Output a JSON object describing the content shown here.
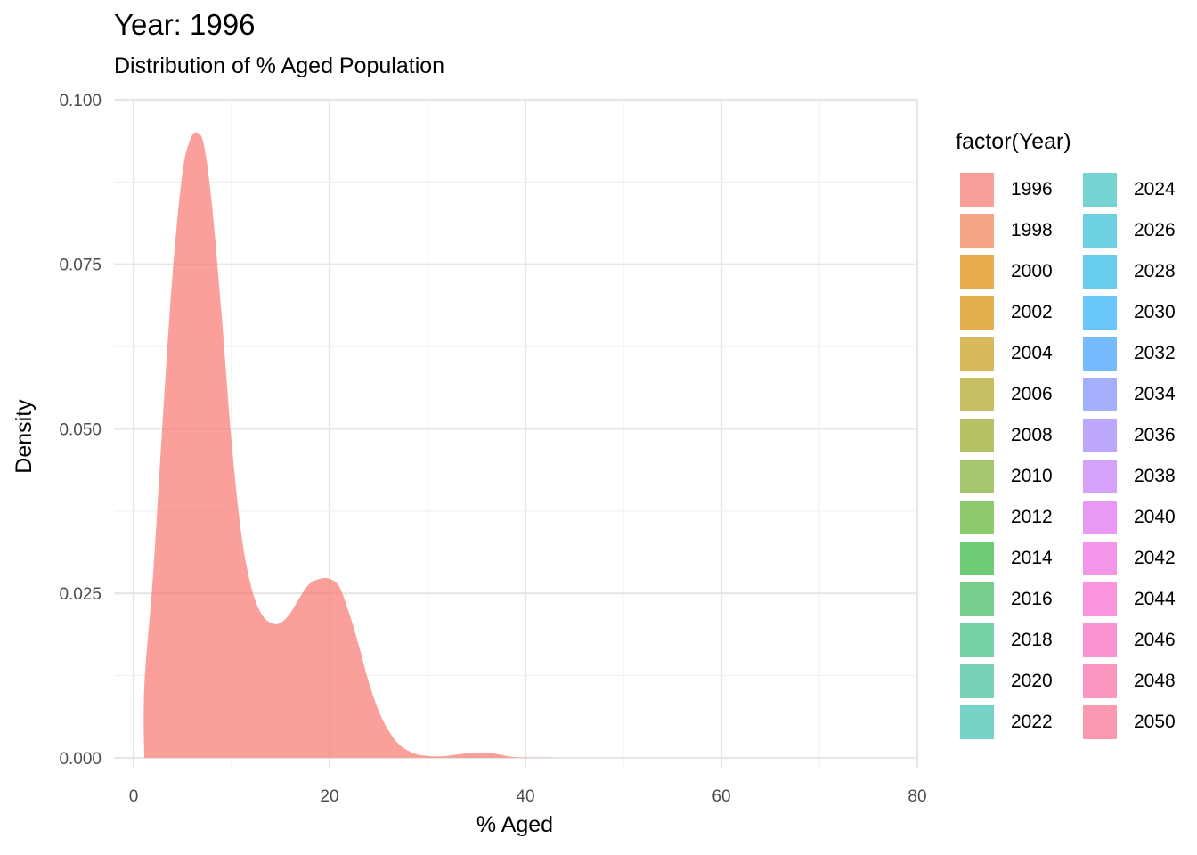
{
  "chart_data": {
    "type": "area",
    "title": "Year: 1996",
    "subtitle": "Distribution of % Aged Population",
    "xlabel": "% Aged",
    "ylabel": "Density",
    "xlim": [
      -2,
      80
    ],
    "ylim": [
      -0.0015,
      0.1
    ],
    "x_ticks": [
      0,
      20,
      40,
      60,
      80
    ],
    "x_tick_labels": [
      "0",
      "20",
      "40",
      "60",
      "80"
    ],
    "y_ticks": [
      0.0,
      0.025,
      0.05,
      0.075,
      0.1
    ],
    "y_tick_labels": [
      "0.000",
      "0.025",
      "0.050",
      "0.075",
      "0.100"
    ],
    "grid": true,
    "fill_color": "#f8766d",
    "fill_opacity": 0.7,
    "series": [
      {
        "name": "1996",
        "x": [
          1.1,
          1.1,
          2.0,
          3.0,
          4.0,
          5.0,
          5.8,
          6.5,
          7.2,
          8.0,
          9.0,
          10.0,
          11.0,
          12.0,
          13.0,
          14.0,
          15.0,
          16.0,
          17.0,
          18.0,
          19.0,
          20.0,
          21.0,
          22.0,
          23.0,
          24.0,
          25.0,
          26.0,
          27.0,
          28.0,
          29.0,
          30.0,
          31.0,
          32.0,
          33.0,
          34.0,
          35.0,
          36.0,
          37.0,
          38.0,
          39.0,
          40.0,
          45.0,
          50.0,
          60.0,
          70.0,
          77.0
        ],
        "y": [
          0.0,
          0.011,
          0.028,
          0.052,
          0.074,
          0.089,
          0.094,
          0.095,
          0.093,
          0.084,
          0.067,
          0.048,
          0.034,
          0.026,
          0.022,
          0.0205,
          0.0205,
          0.022,
          0.0245,
          0.0265,
          0.0272,
          0.0272,
          0.026,
          0.022,
          0.017,
          0.0115,
          0.0072,
          0.0042,
          0.0022,
          0.0011,
          0.0005,
          0.0003,
          0.0002,
          0.0003,
          0.0005,
          0.0007,
          0.0008,
          0.0008,
          0.0006,
          0.0003,
          0.0001,
          5e-05,
          0.0,
          0.0,
          0.0,
          0.0,
          0.0
        ]
      }
    ],
    "legend": {
      "title": "factor(Year)",
      "placement": "right",
      "items": [
        {
          "label": "1996",
          "color": "#f8766d"
        },
        {
          "label": "1998",
          "color": "#f07f52"
        },
        {
          "label": "2000",
          "color": "#e38900"
        },
        {
          "label": "2002",
          "color": "#d89000"
        },
        {
          "label": "2004",
          "color": "#c79c1b"
        },
        {
          "label": "2006",
          "color": "#b0a41f"
        },
        {
          "label": "2008",
          "color": "#9aa927"
        },
        {
          "label": "2010",
          "color": "#7fae2e"
        },
        {
          "label": "2012",
          "color": "#5eb333"
        },
        {
          "label": "2014",
          "color": "#2eb83c"
        },
        {
          "label": "2016",
          "color": "#3dbb5a"
        },
        {
          "label": "2018",
          "color": "#3dbe82"
        },
        {
          "label": "2020",
          "color": "#3ebf9c"
        },
        {
          "label": "2022",
          "color": "#3ec1b1"
        },
        {
          "label": "2024",
          "color": "#3cc2c0"
        },
        {
          "label": "2026",
          "color": "#32c0d6"
        },
        {
          "label": "2028",
          "color": "#2ab9e8"
        },
        {
          "label": "2030",
          "color": "#29b0f6"
        },
        {
          "label": "2032",
          "color": "#3b9dfc"
        },
        {
          "label": "2034",
          "color": "#7e8ffc"
        },
        {
          "label": "2036",
          "color": "#a283fc"
        },
        {
          "label": "2038",
          "color": "#c47cf8"
        },
        {
          "label": "2040",
          "color": "#df6ff0"
        },
        {
          "label": "2042",
          "color": "#ee69e0"
        },
        {
          "label": "2044",
          "color": "#f868d2"
        },
        {
          "label": "2046",
          "color": "#fc66c0"
        },
        {
          "label": "2048",
          "color": "#fc6aa8"
        },
        {
          "label": "2050",
          "color": "#f86e8f"
        }
      ]
    }
  }
}
